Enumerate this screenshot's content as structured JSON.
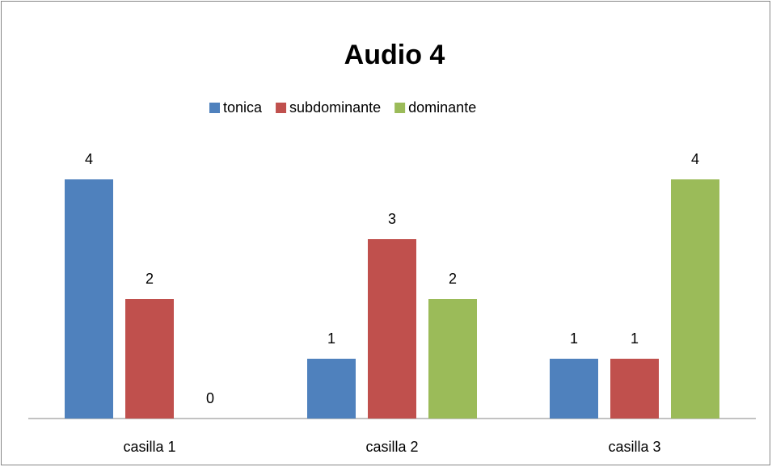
{
  "chart_data": {
    "type": "bar",
    "title": "Audio 4",
    "categories": [
      "casilla 1",
      "casilla 2",
      "casilla 3"
    ],
    "series": [
      {
        "name": "tonica",
        "color": "#4f81bd",
        "values": [
          4,
          1,
          1
        ]
      },
      {
        "name": "subdominante",
        "color": "#c0504d",
        "values": [
          2,
          3,
          1
        ]
      },
      {
        "name": "dominante",
        "color": "#9bbb59",
        "values": [
          0,
          2,
          4
        ]
      }
    ],
    "legend": "top",
    "grid": false
  }
}
